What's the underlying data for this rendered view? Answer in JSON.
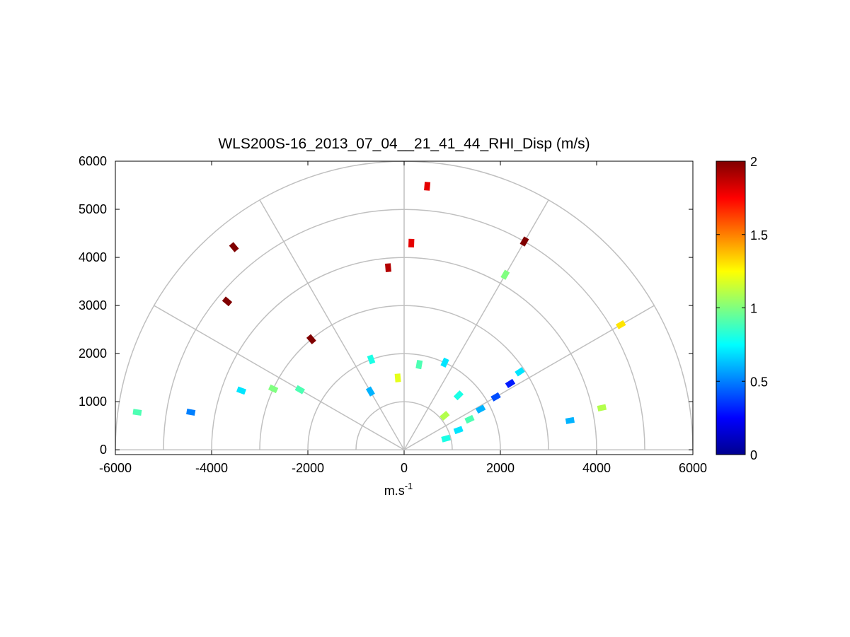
{
  "chart_data": {
    "type": "heatmap",
    "subtype": "polar-rhi",
    "title": "WLS200S-16_2013_07_04__21_41_44_RHI_Disp (m/s)",
    "xlabel": "m.s",
    "xlabel_superscript": "-1",
    "ylabel": "",
    "xlim": [
      -6000,
      6000
    ],
    "ylim": [
      -100,
      6000
    ],
    "x_ticks": [
      "-6000",
      "-4000",
      "-2000",
      "0",
      "2000",
      "4000",
      "6000"
    ],
    "y_ticks": [
      "0",
      "1000",
      "2000",
      "3000",
      "4000",
      "5000",
      "6000"
    ],
    "polar_grid": {
      "ring_radii": [
        1000,
        2000,
        3000,
        4000,
        5000,
        6000
      ],
      "spoke_angles_deg": [
        0,
        30,
        60,
        90,
        120,
        150,
        180
      ]
    },
    "colorbar": {
      "colormap": "jet",
      "range": [
        0,
        2
      ],
      "ticks": [
        "0",
        "0.5",
        "1",
        "1.5",
        "2"
      ]
    },
    "value_range_note": "dense near-surface returns (0.5-1.5 m/s) below ~2100 m range; sparse high values (>=2 m/s) aloft",
    "cells": [
      {
        "r": 900,
        "a": 15,
        "v": 0.8
      },
      {
        "r": 1200,
        "a": 20,
        "v": 0.7
      },
      {
        "r": 1500,
        "a": 25,
        "v": 0.9
      },
      {
        "r": 1800,
        "a": 28,
        "v": 0.6
      },
      {
        "r": 2200,
        "a": 30,
        "v": 0.4
      },
      {
        "r": 2600,
        "a": 32,
        "v": 0.3
      },
      {
        "r": 2900,
        "a": 34,
        "v": 0.7
      },
      {
        "r": 1100,
        "a": 40,
        "v": 1.1
      },
      {
        "r": 1600,
        "a": 45,
        "v": 0.8
      },
      {
        "r": 2000,
        "a": 65,
        "v": 0.7
      },
      {
        "r": 1800,
        "a": 80,
        "v": 0.9
      },
      {
        "r": 1500,
        "a": 95,
        "v": 1.2
      },
      {
        "r": 2000,
        "a": 110,
        "v": 0.8
      },
      {
        "r": 1400,
        "a": 120,
        "v": 0.6
      },
      {
        "r": 2500,
        "a": 150,
        "v": 0.9
      },
      {
        "r": 3000,
        "a": 155,
        "v": 1.0
      },
      {
        "r": 3600,
        "a": 160,
        "v": 0.7
      },
      {
        "r": 4500,
        "a": 170,
        "v": 0.5
      },
      {
        "r": 5600,
        "a": 172,
        "v": 0.9
      },
      {
        "r": 3500,
        "a": 10,
        "v": 0.6
      },
      {
        "r": 4200,
        "a": 12,
        "v": 1.1
      },
      {
        "r": 5200,
        "a": 30,
        "v": 1.3
      },
      {
        "r": 4200,
        "a": 60,
        "v": 1.0
      },
      {
        "r": 5500,
        "a": 85,
        "v": 1.8
      },
      {
        "r": 4300,
        "a": 88,
        "v": 1.8
      },
      {
        "r": 3800,
        "a": 95,
        "v": 1.9
      },
      {
        "r": 5500,
        "a": 130,
        "v": 2.0
      },
      {
        "r": 4800,
        "a": 140,
        "v": 2.0
      },
      {
        "r": 3000,
        "a": 130,
        "v": 2.0
      },
      {
        "r": 5000,
        "a": 60,
        "v": 2.0
      }
    ]
  }
}
